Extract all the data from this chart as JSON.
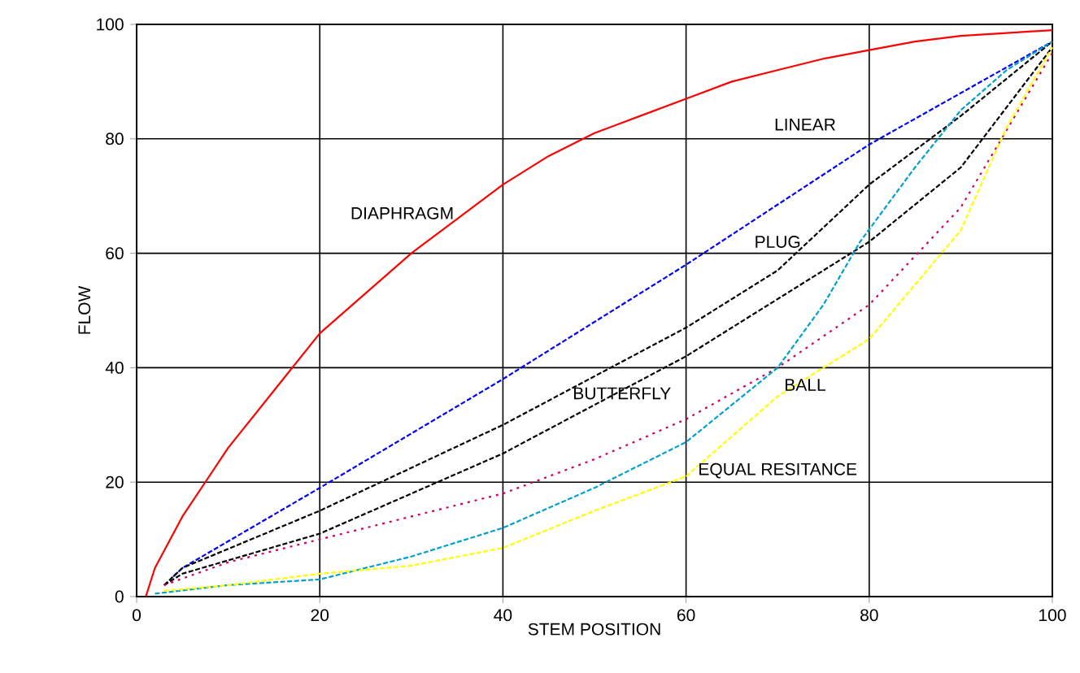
{
  "chart_data": {
    "type": "line",
    "xlabel": "STEM POSITION",
    "ylabel": "FLOW",
    "xlim": [
      0,
      100
    ],
    "ylim": [
      0,
      100
    ],
    "xticks": [
      0,
      20,
      40,
      60,
      80,
      100
    ],
    "yticks": [
      0,
      20,
      40,
      60,
      80,
      100
    ],
    "grid": true,
    "marker": "none",
    "series": [
      {
        "color": "#ff0000",
        "line_style": "solid",
        "x": [
          1,
          2,
          5,
          10,
          15,
          20,
          25,
          30,
          35,
          40,
          45,
          50,
          55,
          60,
          65,
          70,
          75,
          80,
          85,
          90,
          95,
          100
        ],
        "values": [
          0,
          5,
          14,
          26,
          36,
          46,
          53,
          60,
          66,
          72,
          77,
          81,
          84,
          87,
          90,
          92,
          94,
          95.5,
          97,
          98,
          98.5,
          99
        ]
      },
      {
        "color": "#0000ff",
        "line_style": "dashed",
        "x": [
          4,
          5,
          20,
          40,
          60,
          80,
          100
        ],
        "values": [
          3.5,
          5,
          19,
          38,
          58,
          79,
          97
        ]
      },
      {
        "color": "#000000",
        "line_style": "dashed",
        "x": [
          3,
          5,
          20,
          40,
          60,
          70,
          80,
          90,
          100
        ],
        "values": [
          2,
          5,
          15,
          30,
          47,
          57,
          72,
          84,
          97
        ]
      },
      {
        "color": "#000000",
        "line_style": "dashed",
        "x": [
          3,
          5,
          20,
          40,
          60,
          70,
          80,
          90,
          100
        ],
        "values": [
          2,
          4,
          11,
          25,
          42,
          52,
          62,
          75,
          96
        ]
      },
      {
        "color": "#cc0066",
        "line_style": "dotted",
        "x": [
          3,
          10,
          20,
          30,
          40,
          50,
          60,
          70,
          80,
          90,
          100
        ],
        "values": [
          2,
          6,
          10,
          14,
          18,
          24,
          31,
          40,
          51,
          68,
          95
        ]
      },
      {
        "color": "#00a0d0",
        "line_style": "dashed",
        "x": [
          2,
          10,
          20,
          30,
          40,
          50,
          60,
          70,
          75,
          79,
          85,
          90,
          95,
          100
        ],
        "values": [
          0.5,
          2,
          3,
          7,
          12,
          19,
          27,
          40,
          51,
          62,
          75,
          85,
          92,
          97
        ]
      },
      {
        "color": "#ffff00",
        "line_style": "dashed",
        "x": [
          3,
          10,
          20,
          30,
          40,
          50,
          60,
          70,
          80,
          90,
          95,
          100
        ],
        "values": [
          1,
          2,
          4,
          5.4,
          8.5,
          15,
          21,
          35,
          45,
          64,
          82,
          96
        ]
      }
    ],
    "annotations": [
      "DIAPHRAGM",
      "LINEAR",
      "PLUG",
      "BUTTERFLY",
      "BALL",
      "EQUAL RESITANCE"
    ]
  }
}
